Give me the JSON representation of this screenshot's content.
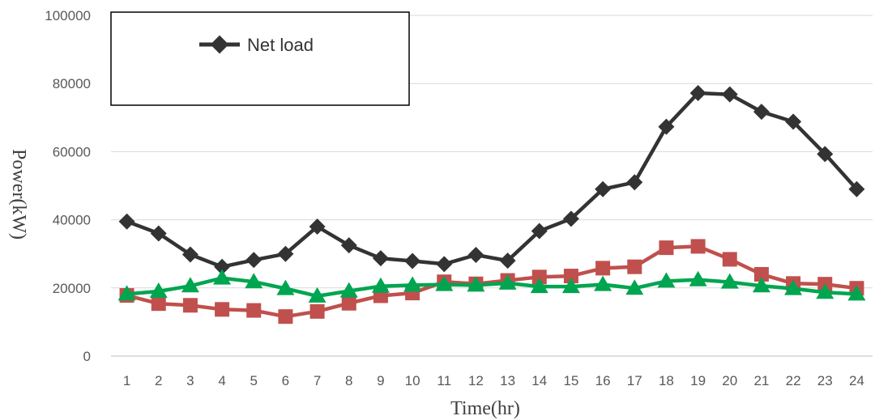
{
  "chart_data": {
    "type": "line",
    "title": "",
    "xlabel": "Time(hr)",
    "ylabel": "Power(kW)",
    "categories": [
      "1",
      "2",
      "3",
      "4",
      "5",
      "6",
      "7",
      "8",
      "9",
      "10",
      "11",
      "12",
      "13",
      "14",
      "15",
      "16",
      "17",
      "18",
      "19",
      "20",
      "21",
      "22",
      "23",
      "24"
    ],
    "ylim": [
      0,
      100000
    ],
    "yticks": [
      0,
      20000,
      40000,
      60000,
      80000,
      100000
    ],
    "grid": true,
    "legend_position": "top-left",
    "series": [
      {
        "name": "Net load",
        "color": "#333333",
        "marker": "diamond",
        "in_legend": true,
        "values": [
          39500,
          36000,
          29800,
          26200,
          28200,
          30000,
          38000,
          32500,
          28700,
          27900,
          27000,
          29700,
          28000,
          36700,
          40300,
          49000,
          51000,
          67300,
          77200,
          76800,
          71700,
          68800,
          59300,
          49000
        ]
      },
      {
        "color": "#c0504d",
        "marker": "square",
        "in_legend": false,
        "values": [
          17800,
          15400,
          14900,
          13700,
          13400,
          11600,
          13100,
          15500,
          17700,
          18500,
          21800,
          21200,
          22200,
          23200,
          23500,
          25800,
          26200,
          31800,
          32200,
          28400,
          24000,
          21300,
          21100,
          19900
        ]
      },
      {
        "color": "#00a550",
        "marker": "triangle",
        "in_legend": false,
        "values": [
          18200,
          19000,
          20600,
          22900,
          21800,
          19800,
          17600,
          19100,
          20500,
          20800,
          21000,
          20800,
          21400,
          20400,
          20400,
          21000,
          19900,
          22000,
          22400,
          21700,
          20600,
          19800,
          18700,
          18200
        ]
      }
    ]
  }
}
